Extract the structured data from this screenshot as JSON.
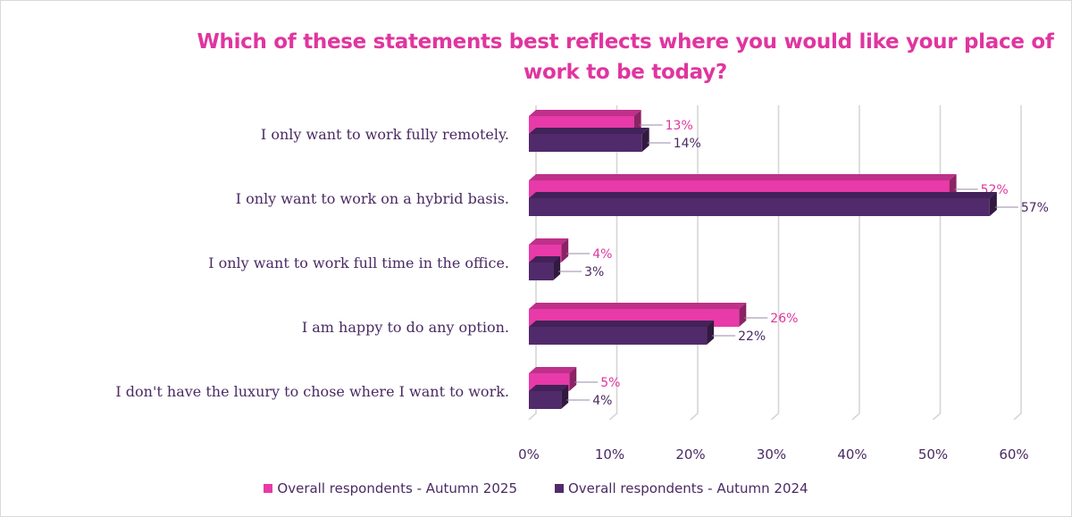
{
  "chart_data": {
    "type": "bar",
    "orientation": "horizontal",
    "title": "Which of these statements best reflects where you would like your place of work to be today?",
    "title_lines": [
      "Which of these statements best reflects where you would like your place of",
      "work to be today?"
    ],
    "categories": [
      "I only want to work fully remotely.",
      "I only want to work on a hybrid basis.",
      "I only want to work full time in the office.",
      "I am happy to do any option.",
      "I don't have the luxury to chose where I want to work."
    ],
    "series": [
      {
        "name": "Overall respondents - Autumn 2025",
        "values": [
          13,
          52,
          4,
          26,
          5
        ],
        "labels": [
          "13%",
          "52%",
          "4%",
          "26%",
          "5%"
        ],
        "color": "#e83aa8"
      },
      {
        "name": "Overall respondents - Autumn 2024",
        "values": [
          14,
          57,
          3,
          22,
          4
        ],
        "labels": [
          "14%",
          "57%",
          "3%",
          "22%",
          "4%"
        ],
        "color": "#512a6b"
      }
    ],
    "xlim": [
      0,
      60
    ],
    "xticks": [
      "0%",
      "10%",
      "20%",
      "30%",
      "40%",
      "50%",
      "60%"
    ],
    "grid": true,
    "legend_position": "bottom",
    "style": "3d"
  }
}
